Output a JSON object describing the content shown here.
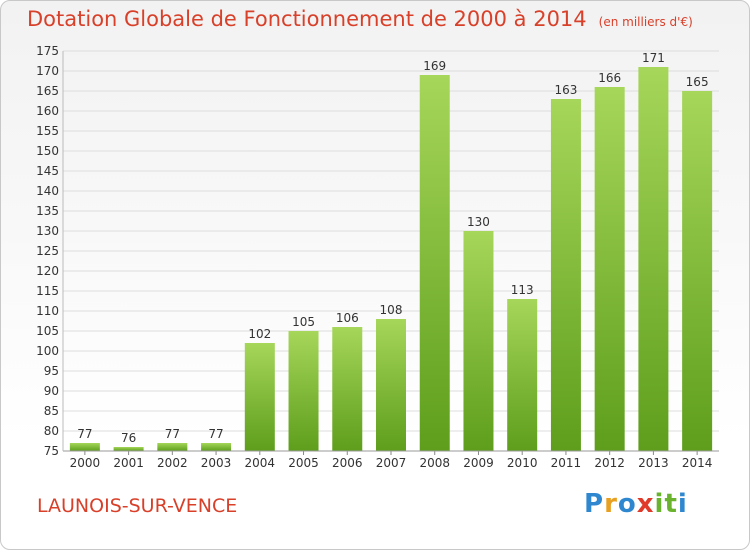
{
  "header": {
    "title": "Dotation Globale de Fonctionnement de 2000 à 2014",
    "unit": "(en milliers d'€)"
  },
  "footer": {
    "commune": "LAUNOIS-SUR-VENCE",
    "logo": "Proxiti",
    "logo_colors": [
      "#2f87d0",
      "#e8a020",
      "#2f87d0",
      "#e03a2a",
      "#6ab32e",
      "#6ab32e"
    ]
  },
  "colors": {
    "bar_top": "#a6d65a",
    "bar_bottom": "#5e9e1c",
    "grid": "#dddddd",
    "axis_text": "#333333",
    "title": "#d8402a"
  },
  "chart_data": {
    "type": "bar",
    "title": "Dotation Globale de Fonctionnement de 2000 à 2014",
    "subtitle": "(en milliers d'€)",
    "xlabel": "",
    "ylabel": "",
    "categories": [
      "2000",
      "2001",
      "2002",
      "2003",
      "2004",
      "2005",
      "2006",
      "2007",
      "2008",
      "2009",
      "2010",
      "2011",
      "2012",
      "2013",
      "2014"
    ],
    "values": [
      77,
      76,
      77,
      77,
      102,
      105,
      106,
      108,
      169,
      130,
      113,
      163,
      166,
      171,
      165
    ],
    "ylim": [
      75,
      175
    ],
    "ytick_step": 5,
    "grid": true,
    "legend": "none",
    "data_labels": true
  }
}
